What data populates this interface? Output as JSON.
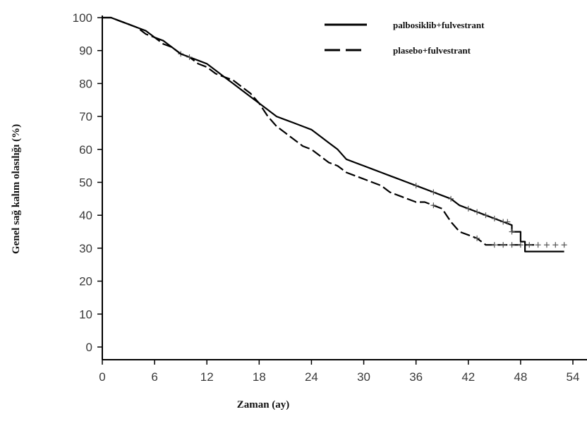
{
  "chart_data": {
    "type": "line",
    "xlabel": "Zaman (ay)",
    "ylabel": "Genel sağ kalım olasılığı (%)",
    "xlim": [
      0,
      54
    ],
    "ylim": [
      0,
      100
    ],
    "x_ticks": [
      0,
      6,
      12,
      18,
      24,
      30,
      36,
      42,
      48,
      54
    ],
    "y_ticks": [
      0,
      10,
      20,
      30,
      40,
      50,
      60,
      70,
      80,
      90,
      100
    ],
    "grid": false,
    "legend_position": "top-right",
    "series": [
      {
        "name": "palbosiklib+fulvestrant",
        "style": "solid",
        "color": "#000000",
        "points": [
          [
            0,
            100
          ],
          [
            1,
            100
          ],
          [
            2,
            99
          ],
          [
            3,
            98
          ],
          [
            4,
            97
          ],
          [
            5,
            96
          ],
          [
            6,
            94
          ],
          [
            7,
            93
          ],
          [
            8,
            91
          ],
          [
            9,
            89
          ],
          [
            10,
            88
          ],
          [
            11,
            87
          ],
          [
            12,
            86
          ],
          [
            13,
            84
          ],
          [
            14,
            82
          ],
          [
            15,
            80
          ],
          [
            16,
            78
          ],
          [
            17,
            76
          ],
          [
            18,
            74
          ],
          [
            19,
            72
          ],
          [
            20,
            70
          ],
          [
            21,
            69
          ],
          [
            22,
            68
          ],
          [
            23,
            67
          ],
          [
            24,
            66
          ],
          [
            25,
            64
          ],
          [
            26,
            62
          ],
          [
            27,
            60
          ],
          [
            28,
            57
          ],
          [
            29,
            56
          ],
          [
            30,
            55
          ],
          [
            31,
            54
          ],
          [
            32,
            53
          ],
          [
            33,
            52
          ],
          [
            34,
            51
          ],
          [
            35,
            50
          ],
          [
            36,
            49
          ],
          [
            37,
            48
          ],
          [
            38,
            47
          ],
          [
            39,
            46
          ],
          [
            40,
            45
          ],
          [
            41,
            43
          ],
          [
            42,
            42
          ],
          [
            43,
            41
          ],
          [
            44,
            40
          ],
          [
            45,
            39
          ],
          [
            46,
            38
          ],
          [
            47,
            37
          ],
          [
            47,
            35
          ],
          [
            48,
            35
          ],
          [
            48,
            32
          ],
          [
            48.5,
            32
          ],
          [
            48.5,
            29
          ],
          [
            53,
            29
          ]
        ],
        "censor_x": [
          9,
          36,
          38,
          40,
          42,
          43,
          44,
          45,
          46,
          46.5,
          47
        ]
      },
      {
        "name": "plasebo+fulvestrant",
        "style": "dashed",
        "color": "#000000",
        "points": [
          [
            0,
            100
          ],
          [
            1,
            100
          ],
          [
            2,
            99
          ],
          [
            3,
            98
          ],
          [
            4,
            97
          ],
          [
            5,
            95
          ],
          [
            6,
            94
          ],
          [
            7,
            92
          ],
          [
            8,
            91
          ],
          [
            9,
            89
          ],
          [
            10,
            88
          ],
          [
            11,
            86
          ],
          [
            12,
            85
          ],
          [
            13,
            83
          ],
          [
            14,
            82
          ],
          [
            15,
            81
          ],
          [
            16,
            79
          ],
          [
            17,
            77
          ],
          [
            18,
            74
          ],
          [
            19,
            70
          ],
          [
            20,
            67
          ],
          [
            21,
            65
          ],
          [
            22,
            63
          ],
          [
            23,
            61
          ],
          [
            24,
            60
          ],
          [
            25,
            58
          ],
          [
            26,
            56
          ],
          [
            27,
            55
          ],
          [
            28,
            53
          ],
          [
            29,
            52
          ],
          [
            30,
            51
          ],
          [
            31,
            50
          ],
          [
            32,
            49
          ],
          [
            33,
            47
          ],
          [
            34,
            46
          ],
          [
            35,
            45
          ],
          [
            36,
            44
          ],
          [
            37,
            44
          ],
          [
            38,
            43
          ],
          [
            39,
            42
          ],
          [
            40,
            38
          ],
          [
            41,
            35
          ],
          [
            42,
            34
          ],
          [
            43,
            33
          ],
          [
            44,
            31
          ],
          [
            45,
            31
          ],
          [
            46,
            31
          ],
          [
            47,
            31
          ],
          [
            48,
            31
          ],
          [
            49,
            31
          ],
          [
            50,
            31
          ]
        ],
        "censor_x": [
          10,
          38,
          43,
          45,
          46,
          47,
          48,
          49,
          50,
          51,
          52,
          53
        ]
      }
    ]
  }
}
